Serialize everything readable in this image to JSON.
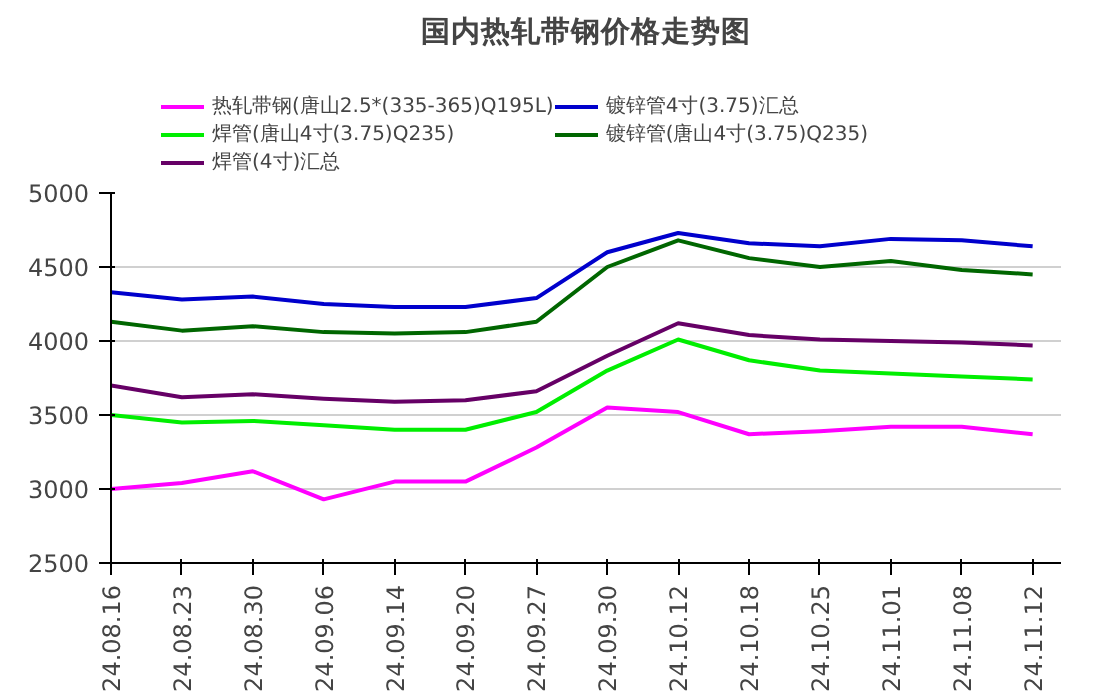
{
  "chart_data": {
    "type": "line",
    "title": "国内热轧带钢价格走势图",
    "categories": [
      "24.08.16",
      "24.08.23",
      "24.08.30",
      "24.09.06",
      "24.09.14",
      "24.09.20",
      "24.09.27",
      "24.09.30",
      "24.10.12",
      "24.10.18",
      "24.10.25",
      "24.11.01",
      "24.11.08",
      "24.11.12"
    ],
    "series": [
      {
        "name": "热轧带钢(唐山2.5*(335-365)Q195L)",
        "color": "#ff00ff",
        "values": [
          3000,
          3040,
          3120,
          2930,
          3050,
          3050,
          3280,
          3550,
          3520,
          3370,
          3390,
          3420,
          3420,
          3370
        ]
      },
      {
        "name": "镀锌管4寸(3.75)汇总",
        "color": "#0000cc",
        "values": [
          4330,
          4280,
          4300,
          4250,
          4230,
          4230,
          4290,
          4600,
          4730,
          4660,
          4640,
          4690,
          4680,
          4640
        ]
      },
      {
        "name": "焊管(唐山4寸(3.75)Q235)",
        "color": "#00ee00",
        "values": [
          3500,
          3450,
          3460,
          3430,
          3400,
          3400,
          3520,
          3800,
          4010,
          3870,
          3800,
          3780,
          3760,
          3740
        ]
      },
      {
        "name": "镀锌管(唐山4寸(3.75)Q235)",
        "color": "#006600",
        "values": [
          4130,
          4070,
          4100,
          4060,
          4050,
          4060,
          4130,
          4500,
          4680,
          4560,
          4500,
          4540,
          4480,
          4450
        ]
      },
      {
        "name": "焊管(4寸)汇总",
        "color": "#660066",
        "values": [
          3700,
          3620,
          3640,
          3610,
          3590,
          3600,
          3660,
          3900,
          4120,
          4040,
          4010,
          4000,
          3990,
          3970
        ]
      }
    ],
    "ylim": [
      2500,
      5000
    ],
    "yticks": [
      2500,
      3000,
      3500,
      4000,
      4500,
      5000
    ],
    "grid": "y",
    "legend": "top",
    "marker": "none",
    "line_style": "solid"
  }
}
